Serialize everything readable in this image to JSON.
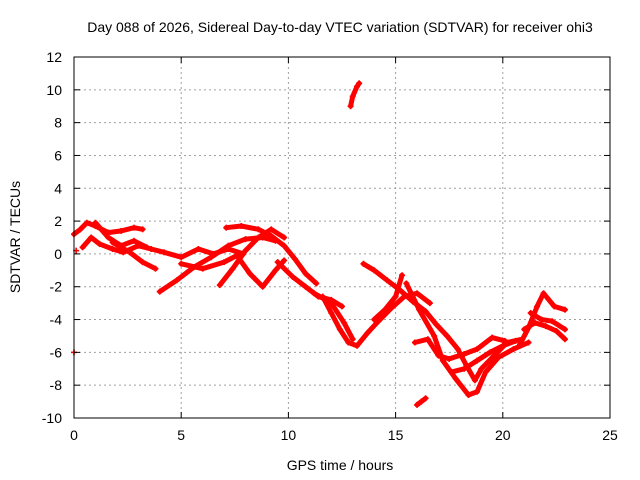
{
  "chart_data": {
    "type": "scatter",
    "title": "Day 088 of 2026, Sidereal Day-to-day VTEC variation (SDTVAR) for receiver ohi3",
    "xlabel": "GPS time / hours",
    "ylabel": "SDTVAR / TECUs",
    "xlim": [
      0,
      25
    ],
    "ylim": [
      -10,
      12
    ],
    "xticks": [
      "0",
      "5",
      "10",
      "15",
      "20",
      "25"
    ],
    "yticks": [
      "-10",
      "-8",
      "-6",
      "-4",
      "-2",
      "0",
      "2",
      "4",
      "6",
      "8",
      "10",
      "12"
    ],
    "grid": true,
    "color": "#ff0000",
    "series": [
      {
        "name": "trace-1",
        "points": [
          [
            0.0,
            1.2
          ],
          [
            0.3,
            1.5
          ],
          [
            0.6,
            1.9
          ],
          [
            1.0,
            1.7
          ],
          [
            1.6,
            1.3
          ],
          [
            2.2,
            1.4
          ],
          [
            2.8,
            1.6
          ],
          [
            3.2,
            1.5
          ]
        ]
      },
      {
        "name": "trace-2",
        "points": [
          [
            0.4,
            0.4
          ],
          [
            0.8,
            1.0
          ],
          [
            1.2,
            0.6
          ],
          [
            1.8,
            0.3
          ],
          [
            2.3,
            0.1
          ],
          [
            3.0,
            0.5
          ],
          [
            3.6,
            0.3
          ],
          [
            4.2,
            0.1
          ],
          [
            5.0,
            -0.2
          ],
          [
            5.8,
            0.3
          ],
          [
            6.5,
            0.0
          ],
          [
            7.2,
            0.3
          ],
          [
            7.9,
            0.0
          ]
        ]
      },
      {
        "name": "trace-3",
        "points": [
          [
            1.0,
            1.9
          ],
          [
            1.6,
            1.0
          ],
          [
            2.2,
            0.5
          ],
          [
            2.8,
            0.8
          ],
          [
            3.4,
            0.4
          ]
        ]
      },
      {
        "name": "trace-4",
        "points": [
          [
            1.8,
            0.7
          ],
          [
            2.6,
            0.1
          ],
          [
            3.2,
            -0.5
          ],
          [
            3.8,
            -0.9
          ]
        ]
      },
      {
        "name": "trace-5",
        "points": [
          [
            4.0,
            -2.3
          ],
          [
            4.8,
            -1.6
          ],
          [
            5.6,
            -0.8
          ],
          [
            6.4,
            -0.2
          ],
          [
            7.2,
            0.5
          ],
          [
            8.0,
            0.9
          ],
          [
            8.8,
            1.0
          ],
          [
            9.4,
            0.8
          ]
        ]
      },
      {
        "name": "trace-6",
        "points": [
          [
            7.1,
            1.6
          ],
          [
            7.8,
            1.7
          ],
          [
            8.6,
            1.5
          ],
          [
            9.2,
            1.1
          ],
          [
            9.8,
            0.5
          ],
          [
            10.3,
            -0.3
          ],
          [
            10.8,
            -1.2
          ],
          [
            11.3,
            -1.8
          ]
        ]
      },
      {
        "name": "trace-7",
        "points": [
          [
            5.0,
            -0.6
          ],
          [
            6.0,
            -0.9
          ],
          [
            7.0,
            -0.5
          ],
          [
            7.6,
            -0.1
          ],
          [
            8.2,
            -1.2
          ],
          [
            8.8,
            -2.0
          ],
          [
            9.4,
            -1.0
          ],
          [
            9.8,
            -0.4
          ]
        ]
      },
      {
        "name": "trace-8",
        "points": [
          [
            6.8,
            -1.9
          ],
          [
            7.4,
            -0.9
          ],
          [
            8.0,
            0.2
          ],
          [
            8.6,
            1.0
          ],
          [
            9.2,
            1.5
          ],
          [
            9.8,
            1.0
          ]
        ]
      },
      {
        "name": "trace-9",
        "points": [
          [
            9.5,
            -0.5
          ],
          [
            10.2,
            -1.4
          ],
          [
            10.8,
            -2.0
          ],
          [
            11.4,
            -2.6
          ],
          [
            12.0,
            -2.8
          ],
          [
            12.5,
            -3.2
          ]
        ]
      },
      {
        "name": "trace-10",
        "points": [
          [
            11.6,
            -2.6
          ],
          [
            12.0,
            -3.6
          ],
          [
            12.4,
            -4.6
          ],
          [
            12.8,
            -5.4
          ],
          [
            13.2,
            -5.6
          ],
          [
            13.7,
            -4.8
          ],
          [
            14.2,
            -4.1
          ],
          [
            14.8,
            -3.3
          ],
          [
            15.4,
            -2.6
          ],
          [
            16.0,
            -2.4
          ],
          [
            16.6,
            -3.0
          ]
        ]
      },
      {
        "name": "trace-11",
        "points": [
          [
            11.2,
            -2.4
          ],
          [
            12.0,
            -3.0
          ],
          [
            12.6,
            -4.2
          ],
          [
            13.0,
            -5.2
          ]
        ]
      },
      {
        "name": "trace-12",
        "points": [
          [
            12.9,
            9.0
          ],
          [
            13.0,
            9.6
          ],
          [
            13.2,
            10.2
          ],
          [
            13.3,
            10.4
          ]
        ]
      },
      {
        "name": "trace-13",
        "points": [
          [
            13.5,
            -0.6
          ],
          [
            14.0,
            -1.0
          ],
          [
            14.6,
            -1.6
          ],
          [
            15.2,
            -2.2
          ],
          [
            15.8,
            -2.9
          ],
          [
            16.4,
            -3.5
          ],
          [
            16.9,
            -4.3
          ],
          [
            17.4,
            -5.0
          ],
          [
            17.9,
            -5.8
          ],
          [
            18.3,
            -6.8
          ],
          [
            18.7,
            -7.7
          ],
          [
            19.0,
            -7.0
          ],
          [
            19.6,
            -6.2
          ],
          [
            20.2,
            -5.4
          ],
          [
            20.9,
            -5.2
          ]
        ]
      },
      {
        "name": "trace-14",
        "points": [
          [
            14.0,
            -4.0
          ],
          [
            14.5,
            -3.4
          ],
          [
            15.0,
            -2.6
          ],
          [
            15.3,
            -1.3
          ]
        ]
      },
      {
        "name": "trace-15",
        "points": [
          [
            15.5,
            -1.8
          ],
          [
            16.1,
            -3.4
          ],
          [
            16.8,
            -5.0
          ],
          [
            17.2,
            -6.5
          ],
          [
            17.8,
            -7.6
          ],
          [
            18.4,
            -8.6
          ],
          [
            18.8,
            -8.4
          ],
          [
            19.2,
            -7.2
          ],
          [
            19.8,
            -6.3
          ],
          [
            20.5,
            -5.8
          ],
          [
            21.2,
            -5.4
          ]
        ]
      },
      {
        "name": "trace-16",
        "points": [
          [
            15.9,
            -5.4
          ],
          [
            16.5,
            -5.2
          ],
          [
            17.0,
            -6.2
          ],
          [
            17.5,
            -6.4
          ],
          [
            18.2,
            -6.1
          ],
          [
            18.8,
            -5.8
          ],
          [
            19.5,
            -5.1
          ],
          [
            20.1,
            -5.3
          ]
        ]
      },
      {
        "name": "trace-17",
        "points": [
          [
            16.0,
            -9.2
          ],
          [
            16.2,
            -9.0
          ],
          [
            16.4,
            -8.8
          ]
        ]
      },
      {
        "name": "trace-18",
        "points": [
          [
            17.6,
            -7.2
          ],
          [
            18.2,
            -7.0
          ],
          [
            18.8,
            -6.5
          ],
          [
            19.4,
            -6.0
          ],
          [
            20.0,
            -5.6
          ],
          [
            20.6,
            -5.3
          ]
        ]
      },
      {
        "name": "trace-19",
        "points": [
          [
            20.8,
            -5.5
          ],
          [
            21.2,
            -4.5
          ],
          [
            21.6,
            -3.2
          ],
          [
            21.9,
            -2.4
          ],
          [
            22.4,
            -3.2
          ],
          [
            22.9,
            -3.4
          ]
        ]
      },
      {
        "name": "trace-20",
        "points": [
          [
            21.0,
            -4.6
          ],
          [
            21.5,
            -4.2
          ],
          [
            22.0,
            -4.4
          ],
          [
            22.5,
            -4.7
          ],
          [
            22.9,
            -5.2
          ]
        ]
      },
      {
        "name": "trace-21",
        "points": [
          [
            21.3,
            -3.6
          ],
          [
            21.8,
            -4.0
          ],
          [
            22.3,
            -4.1
          ],
          [
            22.9,
            -4.6
          ]
        ]
      }
    ],
    "isolated_points": [
      [
        0.0,
        -6.0
      ],
      [
        0.1,
        0.2
      ]
    ]
  }
}
